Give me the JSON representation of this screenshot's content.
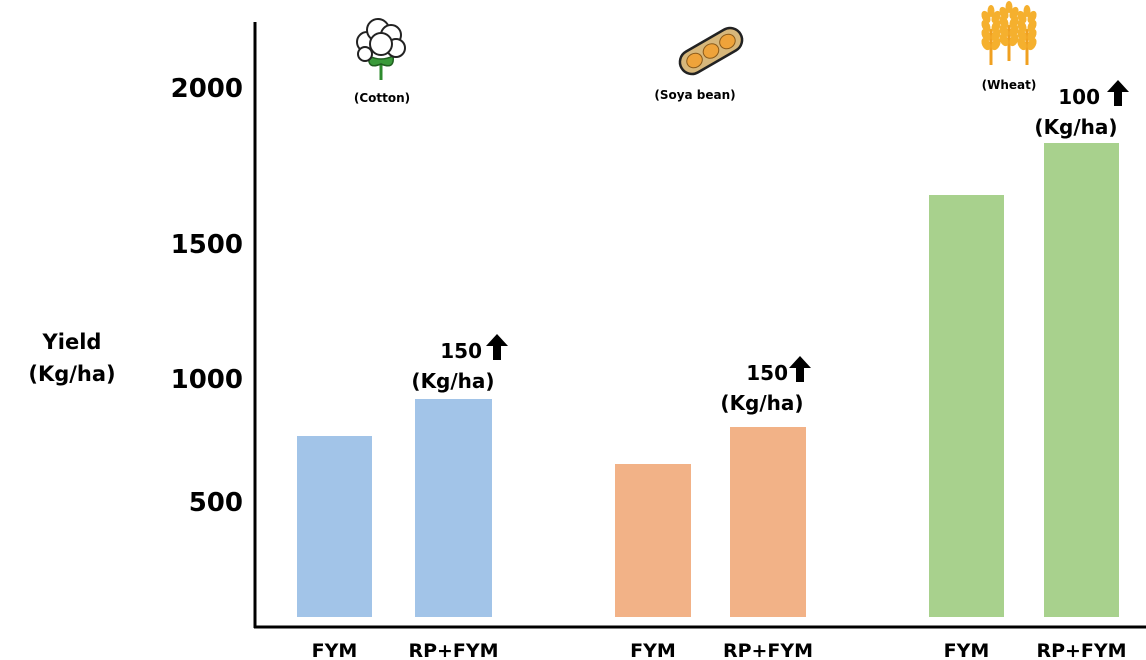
{
  "chart_data": {
    "type": "bar",
    "ylabel": [
      "Yield",
      "(Kg/ha)"
    ],
    "ylim": [
      0,
      2150
    ],
    "yticks": [
      500,
      1000,
      1500,
      2000
    ],
    "groups": [
      {
        "crop": "(Cotton)",
        "icon": "cotton-icon",
        "color": "#a2c4e8",
        "bars": [
          {
            "category": "FYM",
            "value": 750
          },
          {
            "category": "RP+FYM",
            "value": 900
          }
        ],
        "annotation": {
          "amount": "150",
          "unit": "(Kg/ha)"
        }
      },
      {
        "crop": "(Soya bean)",
        "icon": "soybean-icon",
        "color": "#f2b287",
        "bars": [
          {
            "category": "FYM",
            "value": 635
          },
          {
            "category": "RP+FYM",
            "value": 785
          }
        ],
        "annotation": {
          "amount": "150",
          "unit": "(Kg/ha)"
        }
      },
      {
        "crop": "(Wheat)",
        "icon": "wheat-icon",
        "color": "#a8d18d",
        "bars": [
          {
            "category": "FYM",
            "value": 1720
          },
          {
            "category": "RP+FYM",
            "value": 1820
          }
        ],
        "annotation": {
          "amount": "100",
          "unit": "(Kg/ha)"
        }
      }
    ],
    "grid": false,
    "legend": "none"
  }
}
